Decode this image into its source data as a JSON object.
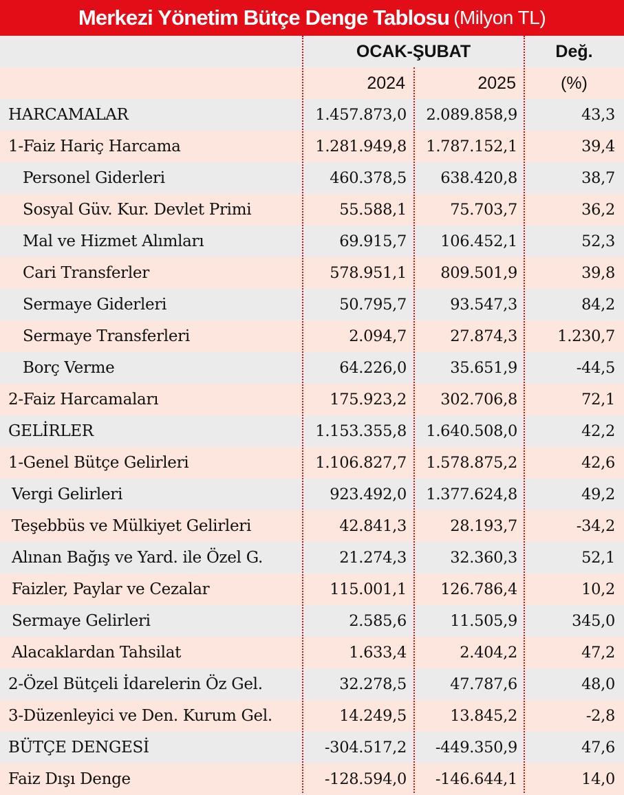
{
  "title": {
    "main": "Merkezi Yönetim Bütçe Denge Tablosu",
    "unit": "(Milyon TL)"
  },
  "header": {
    "period": "OCAK-ŞUBAT",
    "change": "Değ.",
    "year_a": "2024",
    "year_b": "2025",
    "change_unit": "(%)"
  },
  "rows": [
    {
      "label": "HARCAMALAR",
      "v2024": "1.457.873,0",
      "v2025": "2.089.858,9",
      "change": "43,3"
    },
    {
      "label": "1-Faiz Hariç Harcama",
      "v2024": "1.281.949,8",
      "v2025": "1.787.152,1",
      "change": "39,4"
    },
    {
      "label": "Personel Giderleri",
      "v2024": "460.378,5",
      "v2025": "638.420,8",
      "change": "38,7"
    },
    {
      "label": "Sosyal Güv. Kur. Devlet Primi",
      "v2024": "55.588,1",
      "v2025": "75.703,7",
      "change": "36,2"
    },
    {
      "label": "Mal ve Hizmet Alımları",
      "v2024": "69.915,7",
      "v2025": "106.452,1",
      "change": "52,3"
    },
    {
      "label": "Cari Transferler",
      "v2024": "578.951,1",
      "v2025": "809.501,9",
      "change": "39,8"
    },
    {
      "label": "Sermaye Giderleri",
      "v2024": "50.795,7",
      "v2025": "93.547,3",
      "change": "84,2"
    },
    {
      "label": "Sermaye Transferleri",
      "v2024": "2.094,7",
      "v2025": "27.874,3",
      "change": "1.230,7"
    },
    {
      "label": "Borç Verme",
      "v2024": "64.226,0",
      "v2025": "35.651,9",
      "change": "-44,5"
    },
    {
      "label": "2-Faiz Harcamaları",
      "v2024": "175.923,2",
      "v2025": "302.706,8",
      "change": "72,1"
    },
    {
      "label": "GELİRLER",
      "v2024": "1.153.355,8",
      "v2025": "1.640.508,0",
      "change": "42,2"
    },
    {
      "label": "1-Genel Bütçe Gelirleri",
      "v2024": "1.106.827,7",
      "v2025": "1.578.875,2",
      "change": "42,6"
    },
    {
      "label": "Vergi Gelirleri",
      "v2024": "923.492,0",
      "v2025": "1.377.624,8",
      "change": "49,2"
    },
    {
      "label": "Teşebbüs ve Mülkiyet Gelirleri",
      "v2024": "42.841,3",
      "v2025": "28.193,7",
      "change": "-34,2"
    },
    {
      "label": "Alınan Bağış ve Yard. ile Özel G.",
      "v2024": "21.274,3",
      "v2025": "32.360,3",
      "change": "52,1"
    },
    {
      "label": "Faizler, Paylar ve Cezalar",
      "v2024": "115.001,1",
      "v2025": "126.786,4",
      "change": "10,2"
    },
    {
      "label": "Sermaye Gelirleri",
      "v2024": "2.585,6",
      "v2025": "11.505,9",
      "change": "345,0"
    },
    {
      "label": "Alacaklardan Tahsilat",
      "v2024": "1.633,4",
      "v2025": "2.404,2",
      "change": "47,2"
    },
    {
      "label": "2-Özel Bütçeli İdarelerin Öz Gel.",
      "v2024": "32.278,5",
      "v2025": "47.787,6",
      "change": "48,0"
    },
    {
      "label": "3-Düzenleyici ve Den. Kurum Gel.",
      "v2024": "14.249,5",
      "v2025": "13.845,2",
      "change": "-2,8"
    },
    {
      "label": "BÜTÇE DENGESİ",
      "v2024": "-304.517,2",
      "v2025": "-449.350,9",
      "change": "47,6"
    },
    {
      "label": "Faiz Dışı Denge",
      "v2024": "-128.594,0",
      "v2025": "-146.644,1",
      "change": "14,0"
    }
  ],
  "colors": {
    "title_bg": "#e30d17",
    "row_gray": "#ebebeb",
    "row_pink": "#fde6dd",
    "divider": "#e30d17"
  }
}
